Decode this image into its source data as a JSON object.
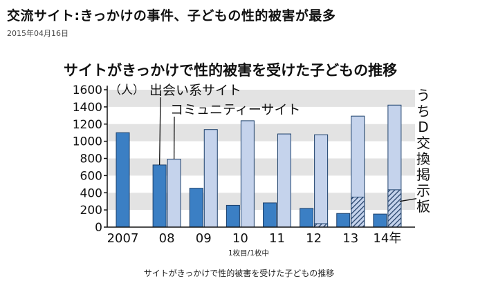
{
  "article": {
    "title": "交流サイト:きっかけの事件、子どもの性的被害が最多",
    "date": "2015年04月16日"
  },
  "page_indicator": "1枚目/1枚中",
  "caption": "サイトがきっかけで性的被害を受けた子どもの推移",
  "colors": {
    "dating": "#3b7fc4",
    "community": "#c5d3ec",
    "uchi_d": "#26426a",
    "stripe": "#e3e3e3"
  },
  "chart_data": {
    "type": "bar",
    "title": "サイトがきっかけで性的被害を受けた子どもの推移",
    "categories": [
      "2007",
      "08",
      "09",
      "10",
      "11",
      "12",
      "13",
      "14年"
    ],
    "ylabel": "（人）",
    "ylim": [
      0,
      1600
    ],
    "yticks": [
      0,
      200,
      400,
      600,
      800,
      1000,
      1200,
      1400,
      1600
    ],
    "grid": "horizontal bands",
    "series": [
      {
        "name": "出会い系サイト",
        "values": [
          1100,
          724,
          453,
          254,
          282,
          218,
          159,
          152
        ]
      },
      {
        "name": "コミュニティーサイト",
        "values": [
          null,
          792,
          1136,
          1239,
          1085,
          1076,
          1293,
          1421
        ]
      },
      {
        "name": "うちD交換掲示板",
        "values": [
          null,
          null,
          null,
          null,
          null,
          40,
          350,
          435
        ],
        "note": "subset of コミュニティーサイト"
      }
    ]
  }
}
